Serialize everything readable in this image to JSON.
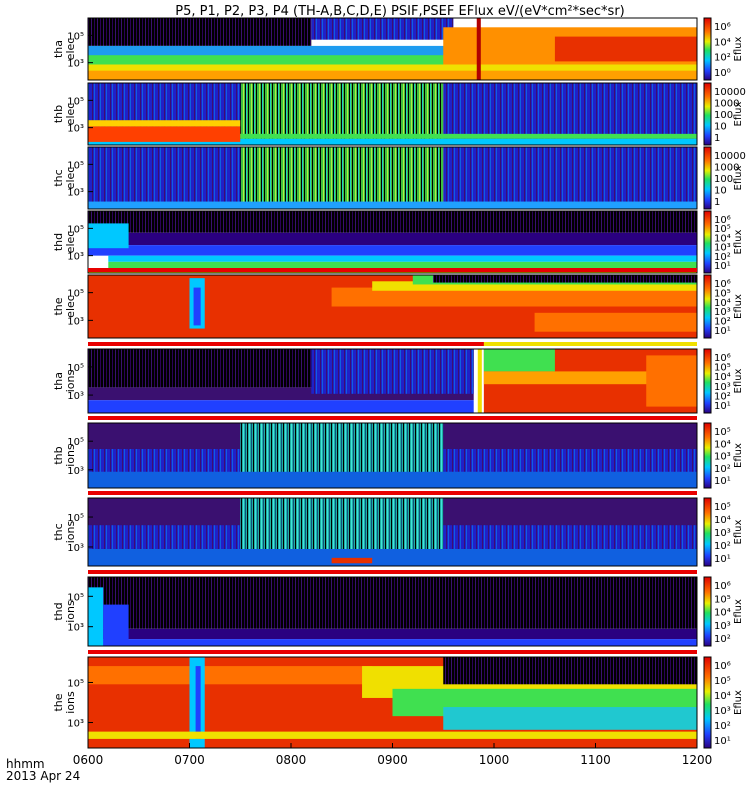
{
  "title": "P5,  P1,  P2,  P3,  P4  (TH-A,B,C,D,E)  PSIF,PSEF  EFlux  eV/(eV*cm²*sec*sr)",
  "chart_data": {
    "type": "heatmap",
    "time_label": "hhmm",
    "date_label": "2013 Apr 24",
    "x_ticks": [
      "0600",
      "0700",
      "0800",
      "0900",
      "1000",
      "1100",
      "1200"
    ],
    "colorbar_title": "Eflux",
    "panels": [
      {
        "label1": "tha",
        "label2": "elec",
        "y_ticks": [
          "10⁵",
          "10³"
        ],
        "cbar_ticks": [
          "10⁶",
          "10⁴",
          "10²",
          "10⁰"
        ],
        "flag": false,
        "features": "dark region above ~10^5 until ~0820, green/yellow band bottom; red high-flux after ~0950 with spike at ~0985"
      },
      {
        "label1": "thb",
        "label2": "elec",
        "y_ticks": [
          "10⁵",
          "10³"
        ],
        "cbar_ticks": [
          "10000",
          "1000",
          "100",
          "10",
          "1"
        ],
        "flag": false,
        "features": "blue/purple background; noisy green block 0750-0950; red-orange low-energy band 0600-0750"
      },
      {
        "label1": "thc",
        "label2": "elec",
        "y_ticks": [
          "10⁵",
          "10³"
        ],
        "cbar_ticks": [
          "10000",
          "1000",
          "100",
          "10",
          "1"
        ],
        "flag": false,
        "features": "blue/purple background; noisy green block 0750-0950"
      },
      {
        "label1": "thd",
        "label2": "elec",
        "y_ticks": [
          "10⁵",
          "10³"
        ],
        "cbar_ticks": [
          "10⁶",
          "10⁵",
          "10⁴",
          "10³",
          "10²",
          "10¹"
        ],
        "flag": false,
        "features": "dark top; cyan/green band near bottom descending across interval"
      },
      {
        "label1": "the",
        "label2": "elec",
        "y_ticks": [
          "10⁵",
          "10³"
        ],
        "cbar_ticks": [
          "10⁶",
          "10⁵",
          "10⁴",
          "10³",
          "10²",
          "10¹"
        ],
        "flag": true,
        "features": "red/orange dominant until ~0850 with cyan gap near 0700-0715, transitioning to green/blue high energies later"
      },
      {
        "label1": "tha",
        "label2": "ions",
        "y_ticks": [
          "10⁵",
          "10³"
        ],
        "cbar_ticks": [
          "10⁶",
          "10⁵",
          "10⁴",
          "10³",
          "10²",
          "10¹"
        ],
        "flag": true,
        "features": "purple/dark until ~0980; red after with green band; spike near 0985"
      },
      {
        "label1": "thb",
        "label2": "ions",
        "y_ticks": [
          "10⁵",
          "10³"
        ],
        "cbar_ticks": [
          "10⁵",
          "10⁴",
          "10³",
          "10²",
          "10¹"
        ],
        "flag": true,
        "features": "purple/blue background; noisy green block 0750-0950"
      },
      {
        "label1": "thc",
        "label2": "ions",
        "y_ticks": [
          "10⁵",
          "10³"
        ],
        "cbar_ticks": [
          "10⁵",
          "10⁴",
          "10³",
          "10²",
          "10¹"
        ],
        "flag": true,
        "features": "purple/blue background; noisy green block 0750-0950"
      },
      {
        "label1": "thd",
        "label2": "ions",
        "y_ticks": [
          "10⁵",
          "10³"
        ],
        "cbar_ticks": [
          "10⁶",
          "10⁵",
          "10⁴",
          "10³",
          "10²"
        ],
        "flag": true,
        "features": "mostly dark/purple; blue band at bottom with early cyan near 0600"
      },
      {
        "label1": "the",
        "label2": "ions",
        "y_ticks": [
          "10⁵",
          "10³"
        ],
        "cbar_ticks": [
          "10⁶",
          "10⁵",
          "10⁴",
          "10³",
          "10²",
          "10¹"
        ],
        "flag": true,
        "features": "red/orange dominant until ~0870 with cyan gap near 0700-0715; green/yellow later with dark upper region"
      }
    ]
  }
}
